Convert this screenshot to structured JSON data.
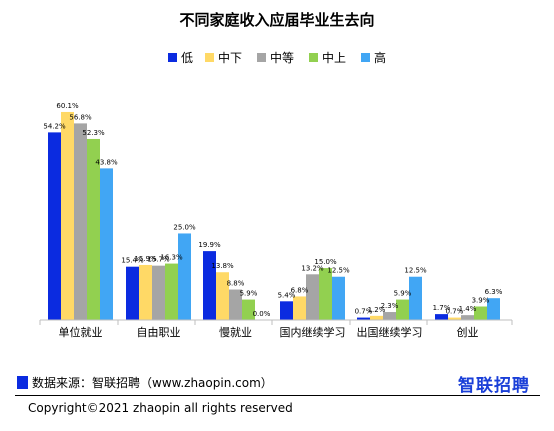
{
  "chart_data": {
    "type": "bar",
    "title": "不同家庭收入应届毕业生去向",
    "categories": [
      "单位就业",
      "自由职业",
      "慢就业",
      "国内继续学习",
      "出国继续学习",
      "创业"
    ],
    "series": [
      {
        "name": "低",
        "color": "#0b2be0",
        "values": [
          54.2,
          15.4,
          19.9,
          5.4,
          0.7,
          1.7
        ]
      },
      {
        "name": "中下",
        "color": "#ffd966",
        "values": [
          60.1,
          15.9,
          13.8,
          6.8,
          1.2,
          0.7
        ]
      },
      {
        "name": "中等",
        "color": "#a5a5a5",
        "values": [
          56.8,
          15.7,
          8.8,
          13.2,
          2.3,
          1.4
        ]
      },
      {
        "name": "中上",
        "color": "#92d050",
        "values": [
          52.3,
          16.3,
          5.9,
          15.0,
          5.9,
          3.9
        ]
      },
      {
        "name": "高",
        "color": "#41a6f4",
        "values": [
          43.8,
          25.0,
          0.0,
          12.5,
          12.5,
          6.3
        ]
      }
    ],
    "value_suffix": "%",
    "ylim": [
      0,
      65
    ],
    "grid": false,
    "legend_position": "top"
  },
  "footer": {
    "source": "数据来源：智联招聘（www.zhaopin.com）",
    "logo": "智联招聘",
    "copyright": "Copyright©2021 zhaopin all rights reserved"
  }
}
